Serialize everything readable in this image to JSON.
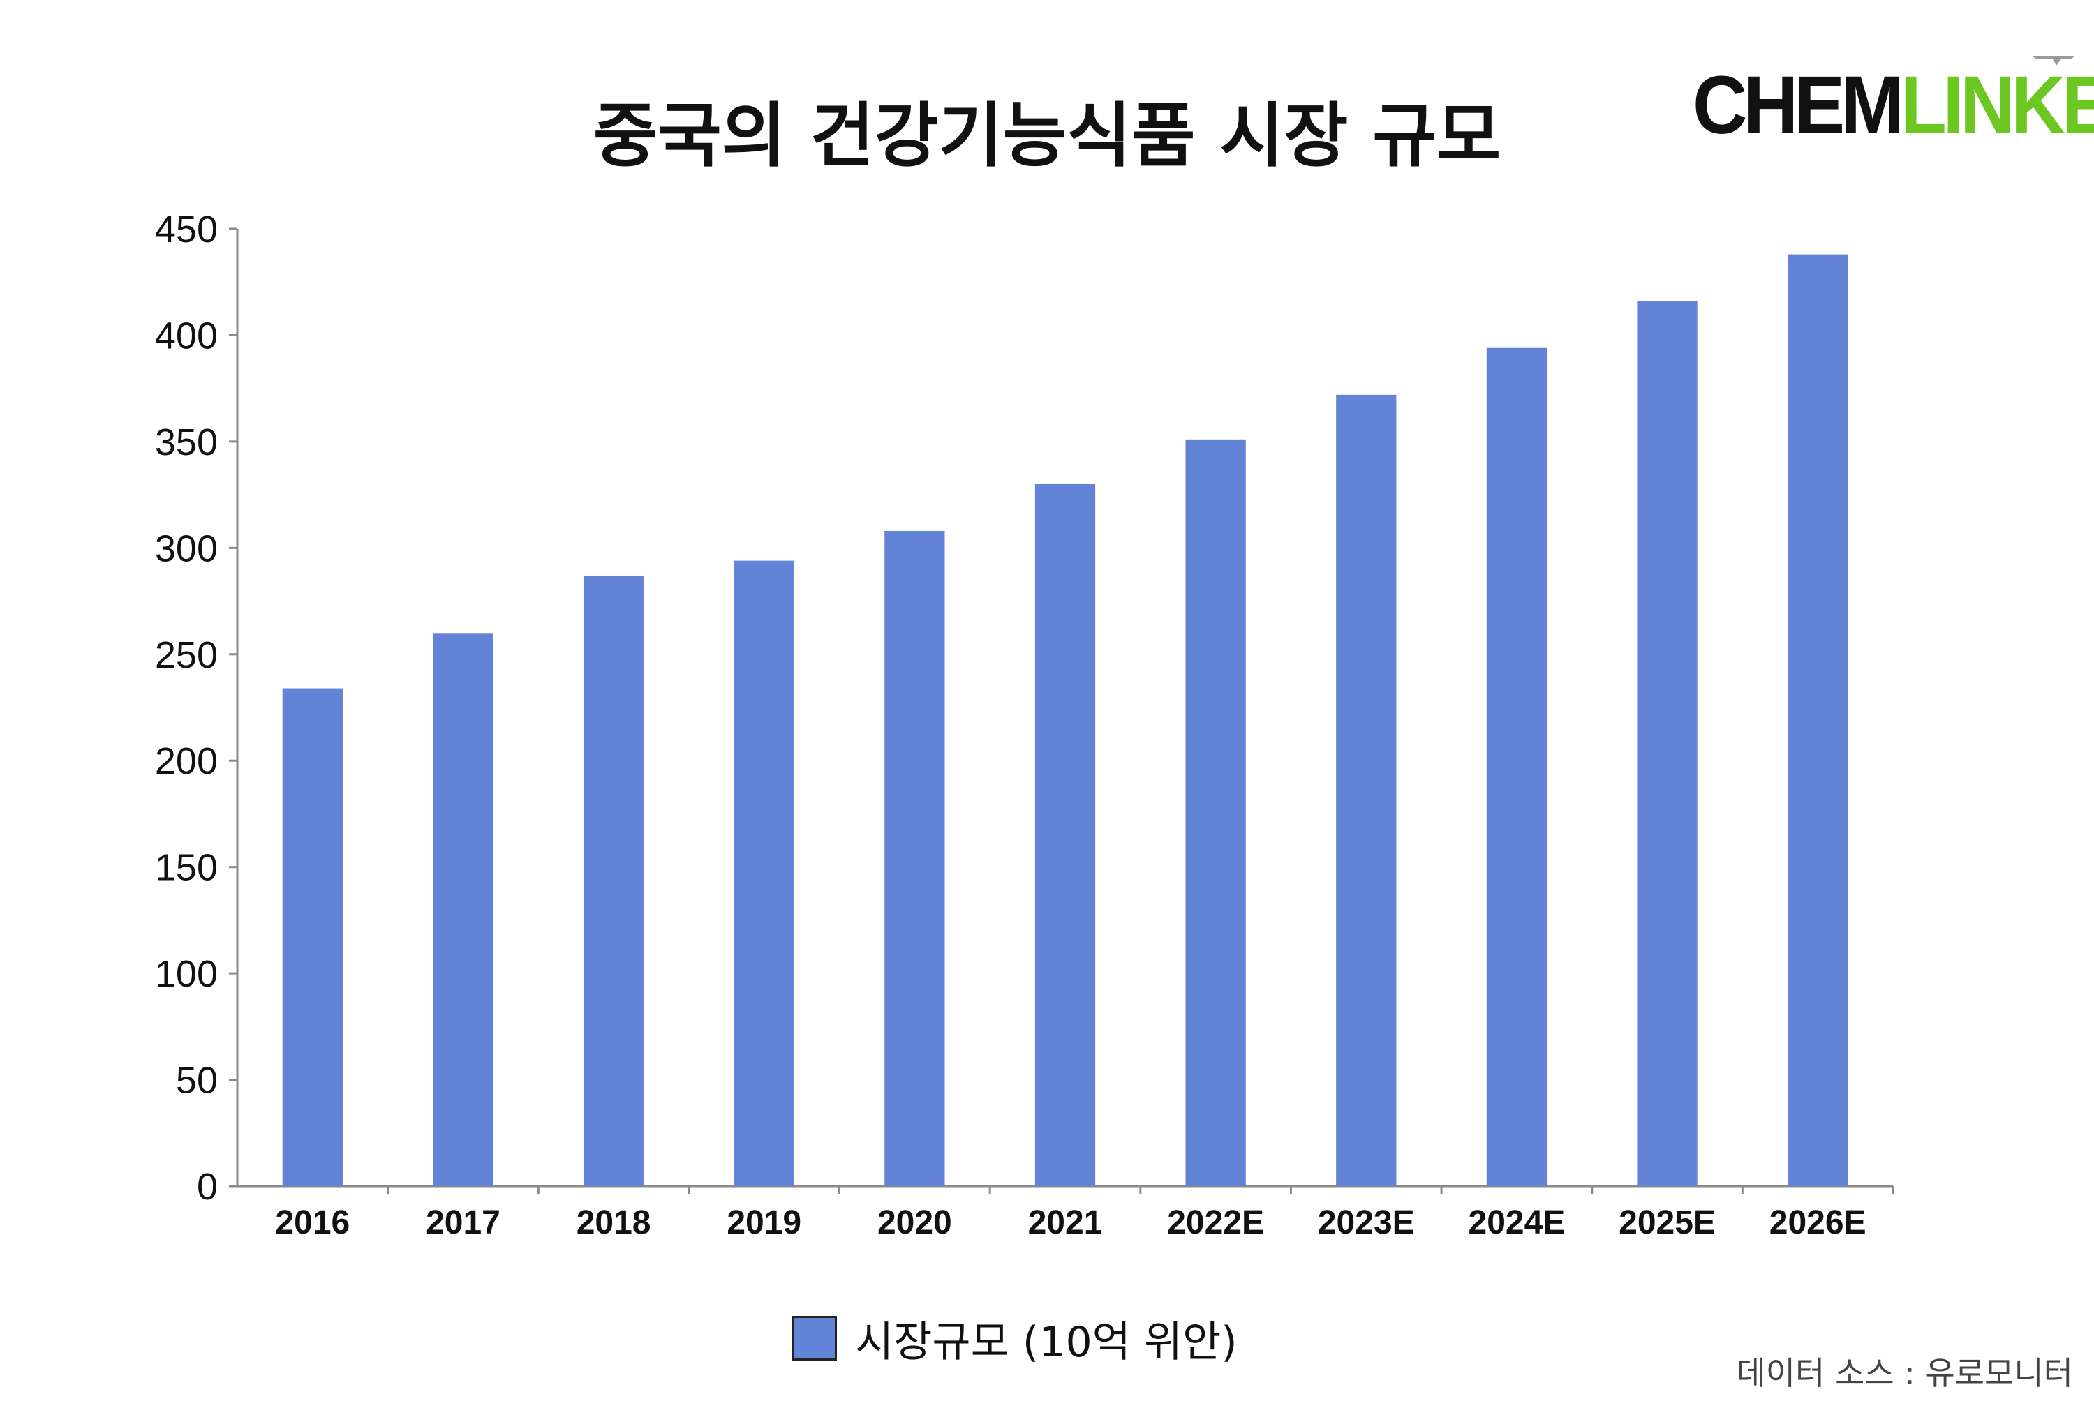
{
  "logo": {
    "part1": "CHEM",
    "part2": "LINKED",
    "colors": {
      "part1": "#111111",
      "part2": "#6cc722",
      "bubble1": "#6cc722",
      "bubble2": "#9a9a9a"
    },
    "icon": "speech-bubbles-icon"
  },
  "source_label": "데이터 소스 : 유로모니터",
  "chart_data": {
    "type": "bar",
    "title": "중국의 건강기능식품 시장 규모",
    "xlabel": "",
    "ylabel": "",
    "categories": [
      "2016",
      "2017",
      "2018",
      "2019",
      "2020",
      "2021",
      "2022E",
      "2023E",
      "2024E",
      "2025E",
      "2026E"
    ],
    "series": [
      {
        "name": "시장규모 (10억 위안)",
        "color": "#6383d7",
        "values": [
          234,
          260,
          287,
          294,
          308,
          330,
          351,
          372,
          394,
          416,
          438
        ]
      }
    ],
    "ylim": [
      0,
      450
    ],
    "yticks": [
      0,
      50,
      100,
      150,
      200,
      250,
      300,
      350,
      400,
      450
    ],
    "grid": false,
    "legend": "bottom-center"
  }
}
